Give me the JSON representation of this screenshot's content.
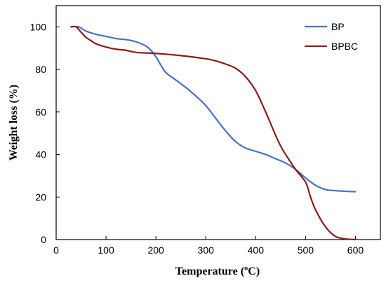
{
  "chart_data": {
    "type": "line",
    "title": "",
    "xlabel": "Temperature (ºC)",
    "ylabel": "Weight loss (%)",
    "xlim": [
      0,
      650
    ],
    "ylim": [
      0,
      110
    ],
    "xticks": [
      0,
      100,
      200,
      300,
      400,
      500,
      600
    ],
    "yticks": [
      0,
      20,
      40,
      60,
      80,
      100
    ],
    "grid": false,
    "legend_position": "top-right",
    "series": [
      {
        "name": "BP",
        "color": "#4472C4",
        "points": [
          [
            30,
            100
          ],
          [
            45,
            100
          ],
          [
            60,
            98
          ],
          [
            80,
            96.5
          ],
          [
            100,
            95.5
          ],
          [
            120,
            94.5
          ],
          [
            140,
            94
          ],
          [
            160,
            93
          ],
          [
            180,
            91
          ],
          [
            190,
            89
          ],
          [
            200,
            86
          ],
          [
            210,
            82
          ],
          [
            220,
            78.5
          ],
          [
            240,
            75
          ],
          [
            260,
            71.5
          ],
          [
            280,
            67.5
          ],
          [
            300,
            63
          ],
          [
            320,
            57
          ],
          [
            340,
            51
          ],
          [
            360,
            46
          ],
          [
            380,
            43
          ],
          [
            400,
            41.5
          ],
          [
            420,
            40
          ],
          [
            440,
            38
          ],
          [
            460,
            36
          ],
          [
            480,
            33
          ],
          [
            500,
            29
          ],
          [
            520,
            25.5
          ],
          [
            540,
            23.5
          ],
          [
            560,
            23
          ],
          [
            580,
            22.7
          ],
          [
            600,
            22.5
          ]
        ]
      },
      {
        "name": "BPBC",
        "color": "#8B1A1A",
        "points": [
          [
            30,
            100
          ],
          [
            40,
            100
          ],
          [
            50,
            97.5
          ],
          [
            60,
            95
          ],
          [
            70,
            93.5
          ],
          [
            80,
            92
          ],
          [
            100,
            90.5
          ],
          [
            120,
            89.5
          ],
          [
            140,
            89
          ],
          [
            160,
            88
          ],
          [
            200,
            87.5
          ],
          [
            250,
            86.5
          ],
          [
            300,
            85
          ],
          [
            320,
            84
          ],
          [
            340,
            82.5
          ],
          [
            360,
            80.5
          ],
          [
            380,
            76.5
          ],
          [
            400,
            70
          ],
          [
            420,
            60
          ],
          [
            440,
            49
          ],
          [
            450,
            44
          ],
          [
            460,
            40
          ],
          [
            480,
            33
          ],
          [
            500,
            27
          ],
          [
            510,
            20
          ],
          [
            520,
            14
          ],
          [
            540,
            6
          ],
          [
            560,
            1.5
          ],
          [
            580,
            0.3
          ],
          [
            600,
            0
          ]
        ]
      }
    ]
  }
}
